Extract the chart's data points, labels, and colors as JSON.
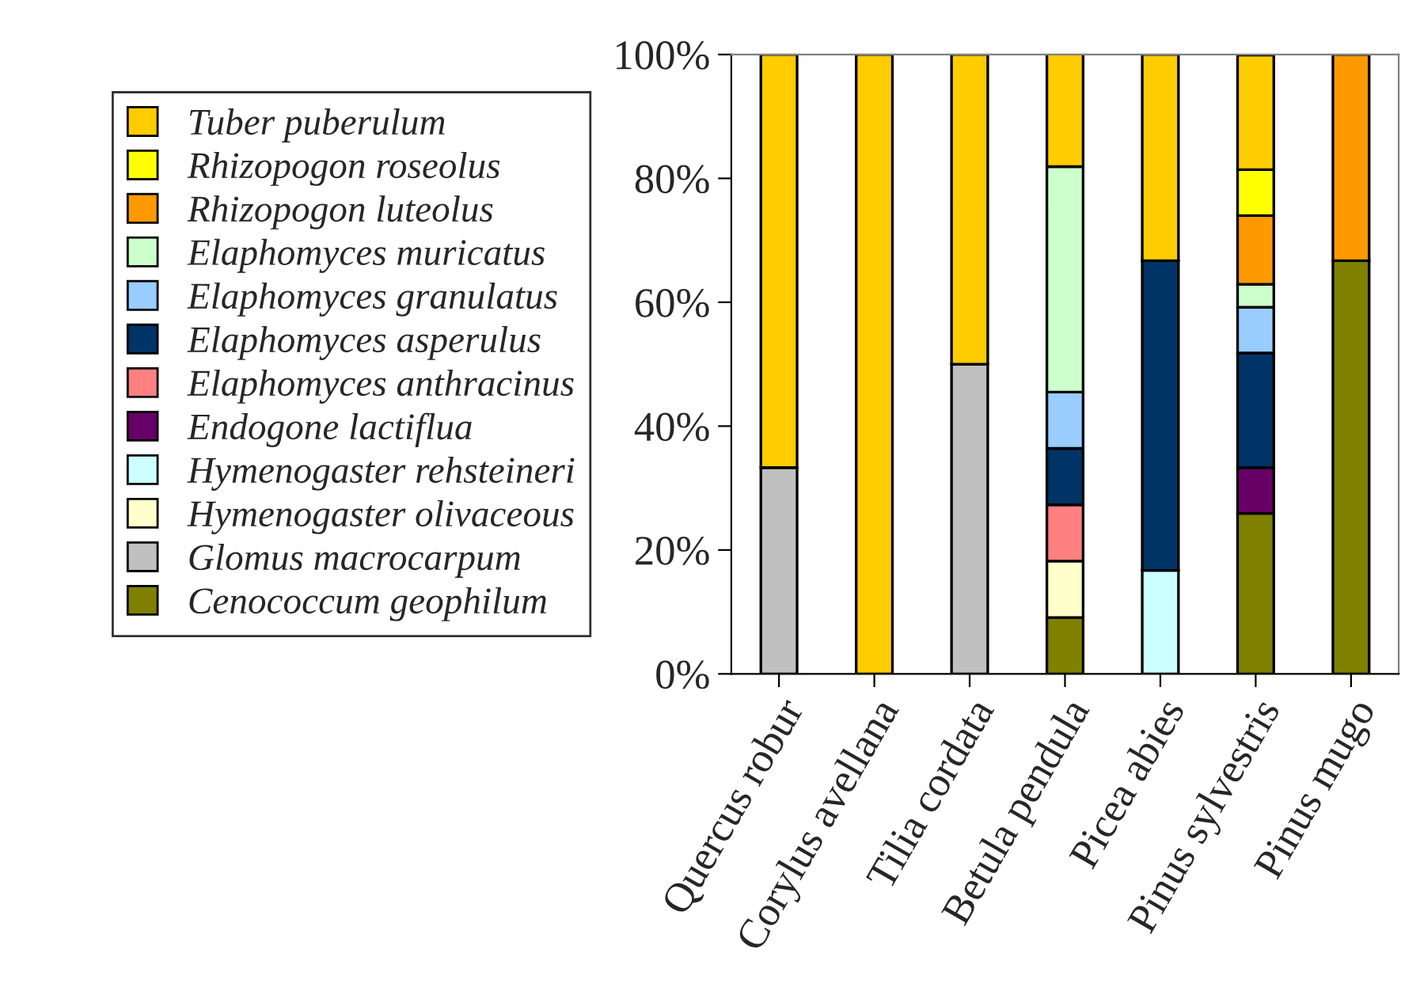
{
  "chart_data": {
    "type": "bar",
    "stacked": true,
    "legend": "left",
    "grid": false,
    "categories": [
      "Quercus robur",
      "Corylus avellana",
      "Tilia cordata",
      "Betula pendula",
      "Picea abies",
      "Pinus sylvestris",
      "Pinus mugo"
    ],
    "ylim": [
      0,
      100
    ],
    "yticks": [
      {
        "value": 0,
        "label": "0%"
      },
      {
        "value": 20,
        "label": "20%"
      },
      {
        "value": 40,
        "label": "40%"
      },
      {
        "value": 60,
        "label": "60%"
      },
      {
        "value": 80,
        "label": "80%"
      },
      {
        "value": 100,
        "label": "100%"
      }
    ],
    "series": [
      {
        "name": "Cenococcum geophilum",
        "color": "#808000",
        "values": [
          0,
          0,
          0,
          9.1,
          0,
          25.9,
          66.7
        ]
      },
      {
        "name": "Glomus macrocarpum",
        "color": "#c0c0c0",
        "values": [
          33.3,
          0,
          50,
          0,
          0,
          0,
          0
        ]
      },
      {
        "name": "Hymenogaster olivaceous",
        "color": "#ffffcc",
        "values": [
          0,
          0,
          0,
          9.1,
          0,
          0,
          0
        ]
      },
      {
        "name": "Hymenogaster rehsteineri",
        "color": "#ccffff",
        "values": [
          0,
          0,
          0,
          0,
          16.7,
          0,
          0
        ]
      },
      {
        "name": "Endogone lactiflua",
        "color": "#660066",
        "values": [
          0,
          0,
          0,
          0,
          0,
          7.4,
          0
        ]
      },
      {
        "name": "Elaphomyces anthracinus",
        "color": "#ff8080",
        "values": [
          0,
          0,
          0,
          9.1,
          0,
          0,
          0
        ]
      },
      {
        "name": "Elaphomyces asperulus",
        "color": "#003366",
        "values": [
          0,
          0,
          0,
          9.1,
          50,
          18.5,
          0
        ]
      },
      {
        "name": "Elaphomyces granulatus",
        "color": "#99ccff",
        "values": [
          0,
          0,
          0,
          9.1,
          0,
          7.4,
          0
        ]
      },
      {
        "name": "Elaphomyces muricatus",
        "color": "#ccffcc",
        "values": [
          0,
          0,
          0,
          36.4,
          0,
          3.7,
          0
        ]
      },
      {
        "name": "Rhizopogon luteolus",
        "color": "#ff9900",
        "values": [
          0,
          0,
          0,
          0,
          0,
          11.1,
          33.3
        ]
      },
      {
        "name": "Rhizopogon roseolus",
        "color": "#ffff00",
        "values": [
          0,
          0,
          0,
          0,
          0,
          7.4,
          0
        ]
      },
      {
        "name": "Tuber puberulum",
        "color": "#ffcc00",
        "values": [
          66.7,
          100,
          50,
          18.2,
          33.3,
          18.5,
          0
        ]
      }
    ]
  }
}
